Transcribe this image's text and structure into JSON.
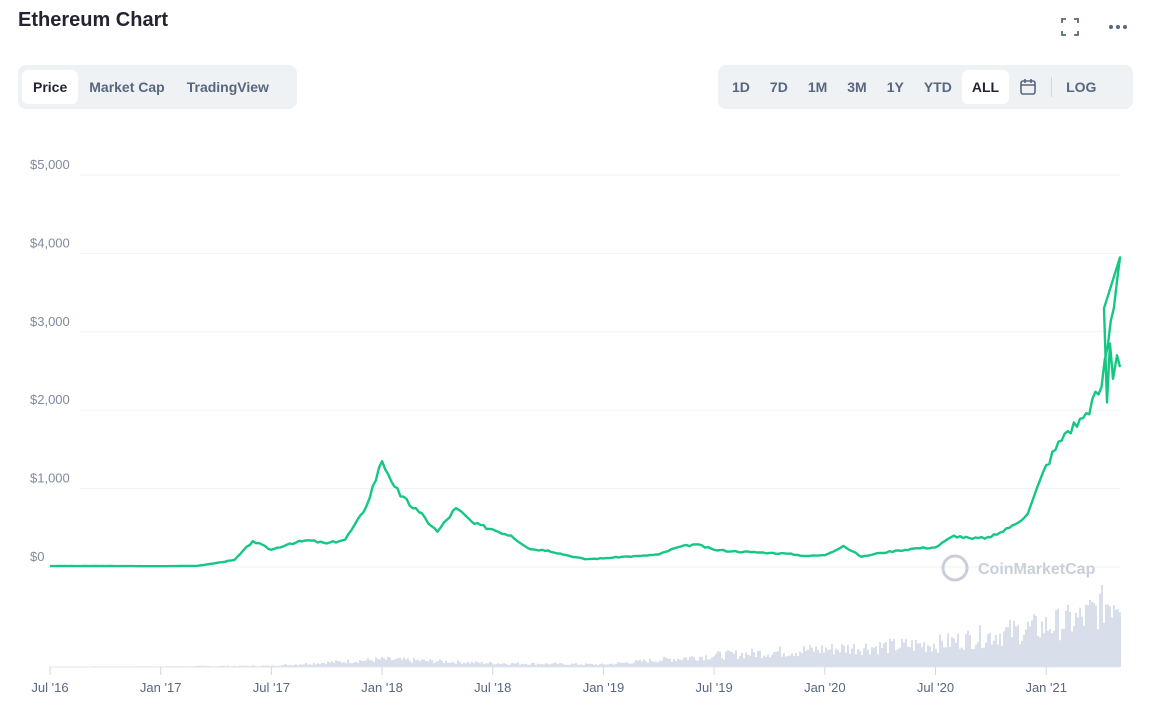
{
  "header": {
    "title": "Ethereum Chart"
  },
  "icons": {
    "fullscreen": "fullscreen-icon",
    "more": "more-icon",
    "calendar": "calendar-icon"
  },
  "tabs": [
    {
      "label": "Price",
      "active": true
    },
    {
      "label": "Market Cap",
      "active": false
    },
    {
      "label": "TradingView",
      "active": false
    }
  ],
  "ranges": [
    {
      "label": "1D",
      "active": false
    },
    {
      "label": "7D",
      "active": false
    },
    {
      "label": "1M",
      "active": false
    },
    {
      "label": "3M",
      "active": false
    },
    {
      "label": "1Y",
      "active": false
    },
    {
      "label": "YTD",
      "active": false
    },
    {
      "label": "ALL",
      "active": true
    }
  ],
  "log_label": "LOG",
  "watermark": "CoinMarketCap",
  "colors": {
    "line": "#16c784",
    "volume": "#cfd6e4",
    "grid": "#eff2f5"
  },
  "chart_data": {
    "type": "line",
    "title": "",
    "xlabel": "",
    "ylabel": "",
    "ylim": [
      0,
      5000
    ],
    "xlim": [
      "2016-07",
      "2021-05"
    ],
    "y_ticks": [
      "$0",
      "$1,000",
      "$2,000",
      "$3,000",
      "$4,000",
      "$5,000"
    ],
    "y_tick_values": [
      0,
      1000,
      2000,
      3000,
      4000,
      5000
    ],
    "x_ticks": [
      "Jul '16",
      "Jan '17",
      "Jul '17",
      "Jan '18",
      "Jul '18",
      "Jan '19",
      "Jul '19",
      "Jan '20",
      "Jul '20",
      "Jan '21"
    ],
    "x_tick_dates": [
      "2016-07",
      "2017-01",
      "2017-07",
      "2018-01",
      "2018-07",
      "2019-01",
      "2019-07",
      "2020-01",
      "2020-07",
      "2021-01"
    ],
    "grid": true,
    "series": [
      {
        "x": [
          "2016-07",
          "2016-10",
          "2017-01",
          "2017-03",
          "2017-04",
          "2017-05",
          "2017-06",
          "2017-07",
          "2017-08",
          "2017-09",
          "2017-10",
          "2017-11",
          "2017-12",
          "2018-01",
          "2018-02",
          "2018-03",
          "2018-04",
          "2018-05",
          "2018-06",
          "2018-07",
          "2018-08",
          "2018-09",
          "2018-10",
          "2018-11",
          "2018-12",
          "2019-01",
          "2019-02",
          "2019-03",
          "2019-04",
          "2019-05",
          "2019-06",
          "2019-07",
          "2019-08",
          "2019-09",
          "2019-10",
          "2019-11",
          "2019-12",
          "2020-01",
          "2020-02",
          "2020-03",
          "2020-04",
          "2020-05",
          "2020-06",
          "2020-07",
          "2020-08",
          "2020-09",
          "2020-10",
          "2020-11",
          "2020-12",
          "2021-01",
          "2021-02",
          "2021-03",
          "2021-04",
          "2021-05"
        ],
        "values": [
          12,
          12,
          10,
          15,
          50,
          90,
          330,
          220,
          300,
          340,
          300,
          350,
          700,
          1350,
          900,
          700,
          450,
          750,
          550,
          480,
          400,
          230,
          210,
          150,
          100,
          110,
          130,
          140,
          160,
          250,
          290,
          220,
          200,
          190,
          180,
          170,
          140,
          150,
          270,
          130,
          180,
          210,
          240,
          250,
          400,
          360,
          380,
          500,
          680,
          1300,
          1700,
          1900,
          2300,
          3950
        ]
      }
    ],
    "volume": {
      "x": [
        "2016-07",
        "2017-01",
        "2017-07",
        "2018-01",
        "2018-07",
        "2019-01",
        "2019-07",
        "2020-01",
        "2020-07",
        "2021-01",
        "2021-03",
        "2021-05"
      ],
      "values": [
        0.3,
        0.5,
        1,
        6,
        3,
        2,
        9,
        14,
        18,
        32,
        38,
        58
      ]
    }
  }
}
